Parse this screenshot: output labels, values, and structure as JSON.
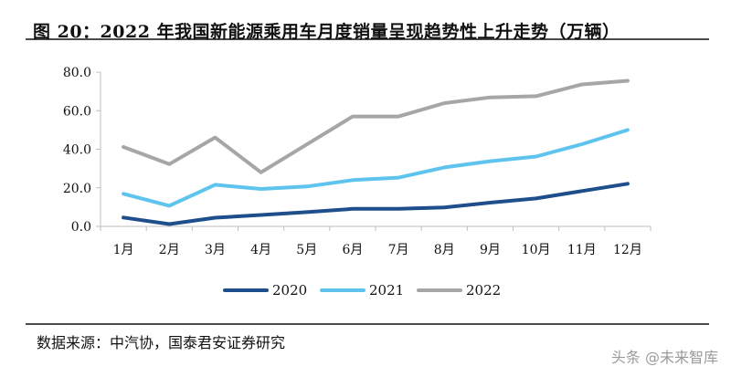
{
  "figure": {
    "title": "图 20：2022 年我国新能源乘用车月度销量呈现趋势性上升走势（万辆）",
    "source": "数据来源：中汽协，国泰君安证券研究",
    "watermark": "头条 @未来智库"
  },
  "chart_data": {
    "type": "line",
    "title": "图 20：2022 年我国新能源乘用车月度销量呈现趋势性上升走势（万辆）",
    "xlabel": "",
    "ylabel": "",
    "categories": [
      "1月",
      "2月",
      "3月",
      "4月",
      "5月",
      "6月",
      "7月",
      "8月",
      "9月",
      "10月",
      "11月",
      "12月"
    ],
    "ylim": [
      0,
      80
    ],
    "yticks": [
      "0.0",
      "20.0",
      "40.0",
      "60.0",
      "80.0"
    ],
    "grid": false,
    "legend_position": "bottom",
    "series": [
      {
        "name": "2020",
        "color": "#1f4e8c",
        "values": [
          4.6,
          1.2,
          4.5,
          5.9,
          7.4,
          9.1,
          9.1,
          9.8,
          12.3,
          14.5,
          18.3,
          22.1
        ]
      },
      {
        "name": "2021",
        "color": "#5ec4ee",
        "values": [
          16.9,
          10.7,
          21.6,
          19.4,
          20.7,
          24.0,
          25.3,
          30.6,
          33.8,
          36.2,
          42.6,
          50.0
        ]
      },
      {
        "name": "2022",
        "color": "#a6a6a6",
        "values": [
          41.2,
          32.3,
          46.1,
          28.0,
          42.5,
          57.0,
          57.0,
          63.9,
          66.9,
          67.5,
          73.6,
          75.5
        ]
      }
    ]
  }
}
